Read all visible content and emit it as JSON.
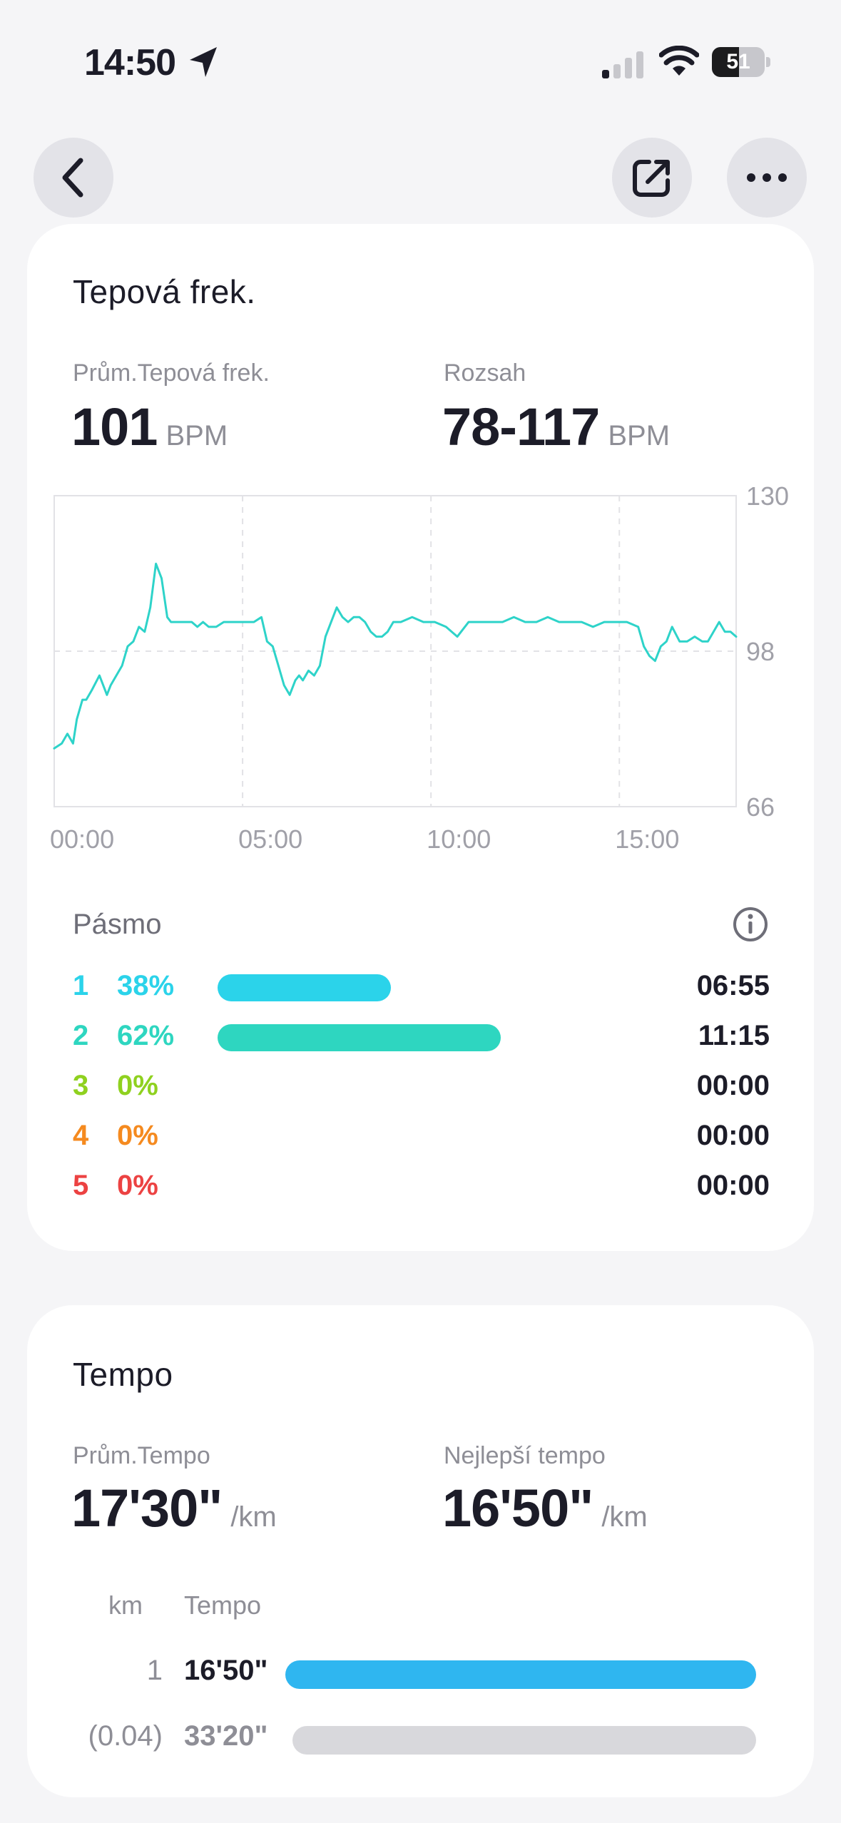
{
  "status_bar": {
    "time": "14:50",
    "battery": "51",
    "battery_level": 0.51,
    "icons": [
      "location-arrow-icon",
      "cellular-signal-icon",
      "wifi-icon",
      "battery-icon"
    ]
  },
  "nav": {
    "icons": [
      "chevron-left-icon",
      "share-external-icon",
      "more-dots-icon"
    ]
  },
  "heart_rate": {
    "title": "Tepová frek.",
    "avg_label": "Prům.Tepová frek.",
    "avg_value": "101",
    "avg_unit": "BPM",
    "range_label": "Rozsah",
    "range_value": "78-117",
    "range_unit": "BPM",
    "zones_title": "Pásmo",
    "zones": [
      {
        "num": "1",
        "pct": "38%",
        "fraction": 0.38,
        "time": "06:55",
        "color": "#2bd3ea"
      },
      {
        "num": "2",
        "pct": "62%",
        "fraction": 0.62,
        "time": "11:15",
        "color": "#2ed6c0"
      },
      {
        "num": "3",
        "pct": "0%",
        "fraction": 0,
        "time": "00:00",
        "color": "#8fd11f"
      },
      {
        "num": "4",
        "pct": "0%",
        "fraction": 0,
        "time": "00:00",
        "color": "#f58a1f"
      },
      {
        "num": "5",
        "pct": "0%",
        "fraction": 0,
        "time": "00:00",
        "color": "#ec4242"
      }
    ]
  },
  "chart_data": {
    "type": "line",
    "title": "",
    "xlabel": "",
    "ylabel": "",
    "xlim": [
      0,
      18.1
    ],
    "ylim": [
      66,
      130
    ],
    "y_ticks": [
      "130",
      "98",
      "66"
    ],
    "x_ticks": [
      {
        "value": 0,
        "label": "00:00"
      },
      {
        "value": 5,
        "label": "05:00"
      },
      {
        "value": 10,
        "label": "10:00"
      },
      {
        "value": 15,
        "label": "15:00"
      }
    ],
    "line_color": "#2ed3c9",
    "series": [
      {
        "x": [
          0,
          0.2,
          0.35,
          0.5,
          0.6,
          0.75,
          0.85,
          1.0,
          1.2,
          1.4,
          1.5,
          1.65,
          1.8,
          1.95,
          2.1,
          2.25,
          2.4,
          2.55,
          2.7,
          2.85,
          3.0,
          3.1,
          3.2,
          3.35,
          3.5,
          3.65,
          3.8,
          3.95,
          4.1,
          4.3,
          4.5,
          4.7,
          4.9,
          5.1,
          5.3,
          5.5,
          5.65,
          5.8,
          5.95,
          6.1,
          6.25,
          6.4,
          6.5,
          6.6,
          6.75,
          6.9,
          7.05,
          7.2,
          7.35,
          7.5,
          7.65,
          7.8,
          7.95,
          8.1,
          8.25,
          8.4,
          8.55,
          8.7,
          8.85,
          9.0,
          9.2,
          9.5,
          9.8,
          10.1,
          10.4,
          10.7,
          11.0,
          11.3,
          11.6,
          11.9,
          12.2,
          12.5,
          12.8,
          13.1,
          13.4,
          13.7,
          14.0,
          14.3,
          14.6,
          14.9,
          15.2,
          15.5,
          15.65,
          15.8,
          15.95,
          16.1,
          16.25,
          16.4,
          16.6,
          16.8,
          17.0,
          17.2,
          17.35,
          17.5,
          17.65,
          17.8,
          17.95,
          18.1
        ],
        "values": [
          78,
          79,
          81,
          79,
          84,
          88,
          88,
          90,
          93,
          89,
          91,
          93,
          95,
          99,
          100,
          103,
          102,
          107,
          116,
          113,
          105,
          104,
          104,
          104,
          104,
          104,
          103,
          104,
          103,
          103,
          104,
          104,
          104,
          104,
          104,
          105,
          100,
          99,
          95,
          91,
          89,
          92,
          93,
          92,
          94,
          93,
          95,
          101,
          104,
          107,
          105,
          104,
          105,
          105,
          104,
          102,
          101,
          101,
          102,
          104,
          104,
          105,
          104,
          104,
          103,
          101,
          104,
          104,
          104,
          104,
          105,
          104,
          104,
          105,
          104,
          104,
          104,
          103,
          104,
          104,
          104,
          103,
          99,
          97,
          96,
          99,
          100,
          103,
          100,
          100,
          101,
          100,
          100,
          102,
          104,
          102,
          102,
          101
        ]
      }
    ]
  },
  "pace": {
    "title": "Tempo",
    "avg_label": "Prům.Tempo",
    "avg_value": "17'30\"",
    "avg_unit": "/km",
    "best_label": "Nejlepší tempo",
    "best_value": "16'50\"",
    "best_unit": "/km",
    "col_km": "km",
    "col_pace": "Tempo",
    "rows": [
      {
        "km": "1",
        "pace": "16'50\"",
        "fraction": 1.0,
        "color": "#2fb6f0",
        "text_color": "#1c1c28"
      },
      {
        "km": "(0.04)",
        "pace": "33'20\"",
        "fraction": 0.985,
        "color": "#d8d8dc",
        "text_color": "#8e8e96"
      }
    ]
  }
}
